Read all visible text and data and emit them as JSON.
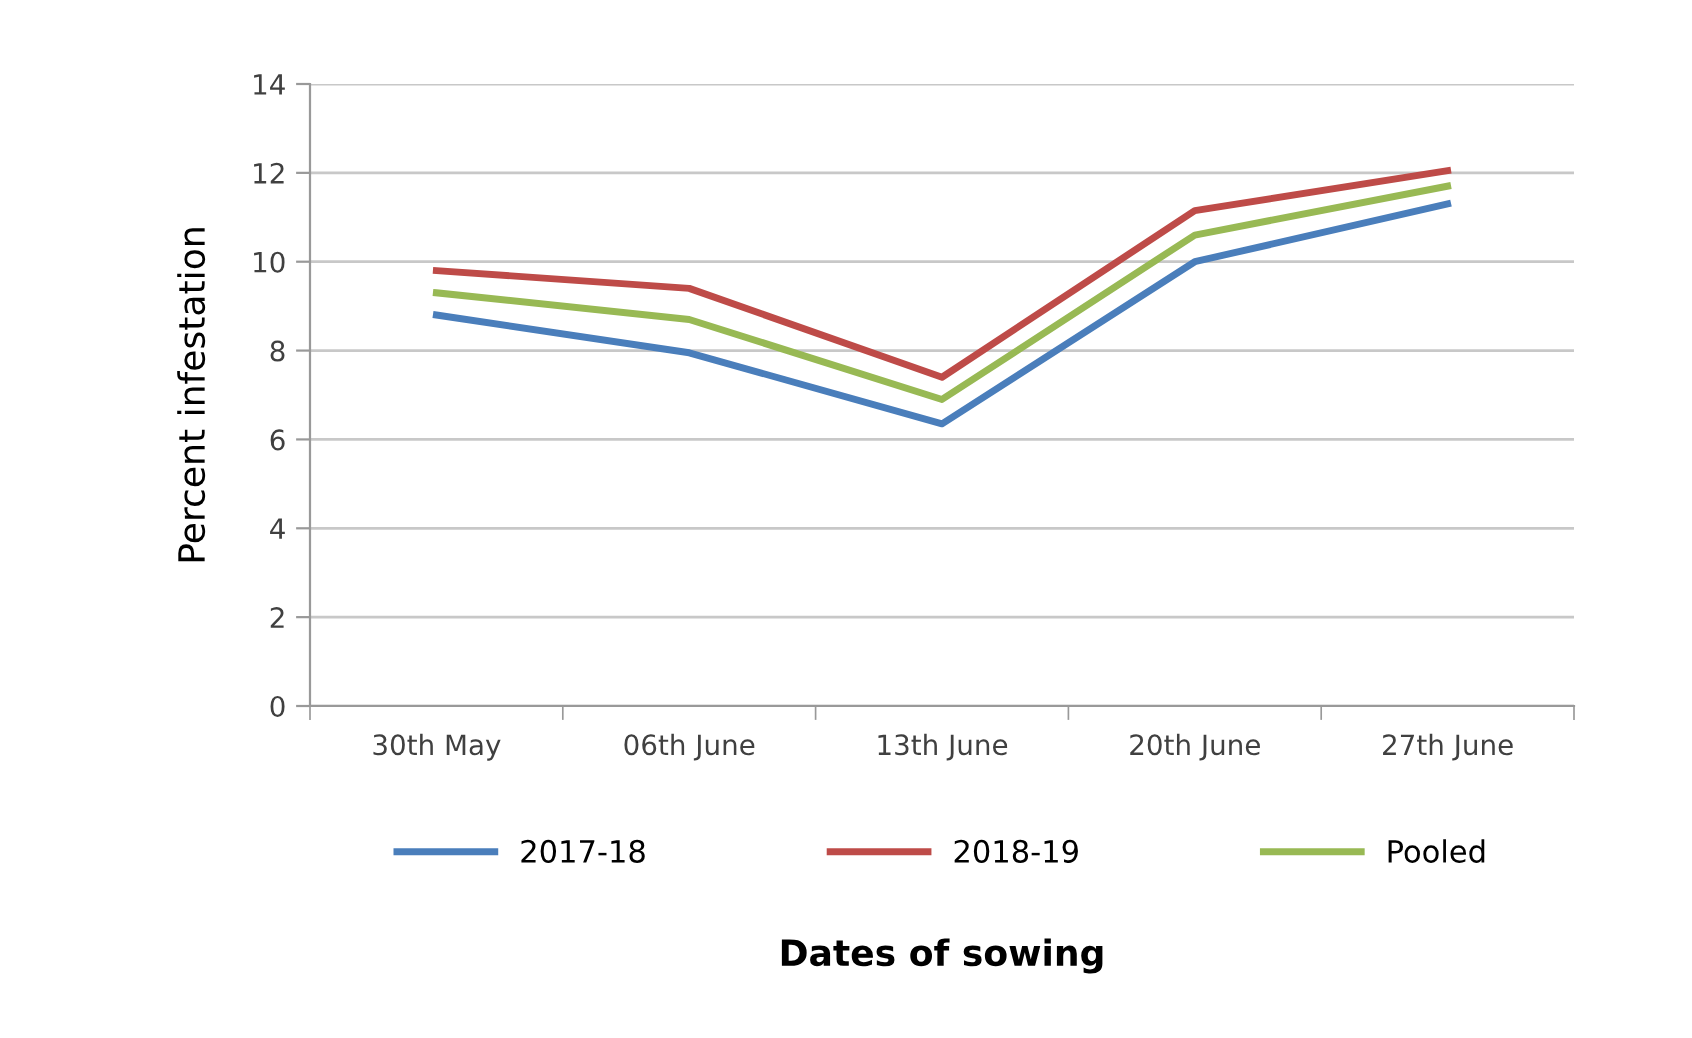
{
  "chart_data": {
    "type": "line",
    "xlabel": "Dates of sowing",
    "ylabel": "Percent infestation",
    "categories": [
      "30th May",
      "06th June",
      "13th June",
      "20th June",
      "27th June"
    ],
    "series": [
      {
        "name": "2017-18",
        "color": "#4a7ebb",
        "values": [
          8.8,
          7.95,
          6.35,
          10.0,
          11.3
        ]
      },
      {
        "name": "2018-19",
        "color": "#be4b48",
        "values": [
          9.8,
          9.4,
          7.4,
          11.15,
          12.05
        ]
      },
      {
        "name": "Pooled",
        "color": "#98b954",
        "values": [
          9.3,
          8.7,
          6.9,
          10.6,
          11.7
        ]
      }
    ],
    "ylim": [
      0,
      14
    ],
    "yticks": [
      0,
      2,
      4,
      6,
      8,
      10,
      12,
      14
    ],
    "grid": "y",
    "legend": "bottom",
    "marker": "none",
    "line_style": "solid"
  }
}
